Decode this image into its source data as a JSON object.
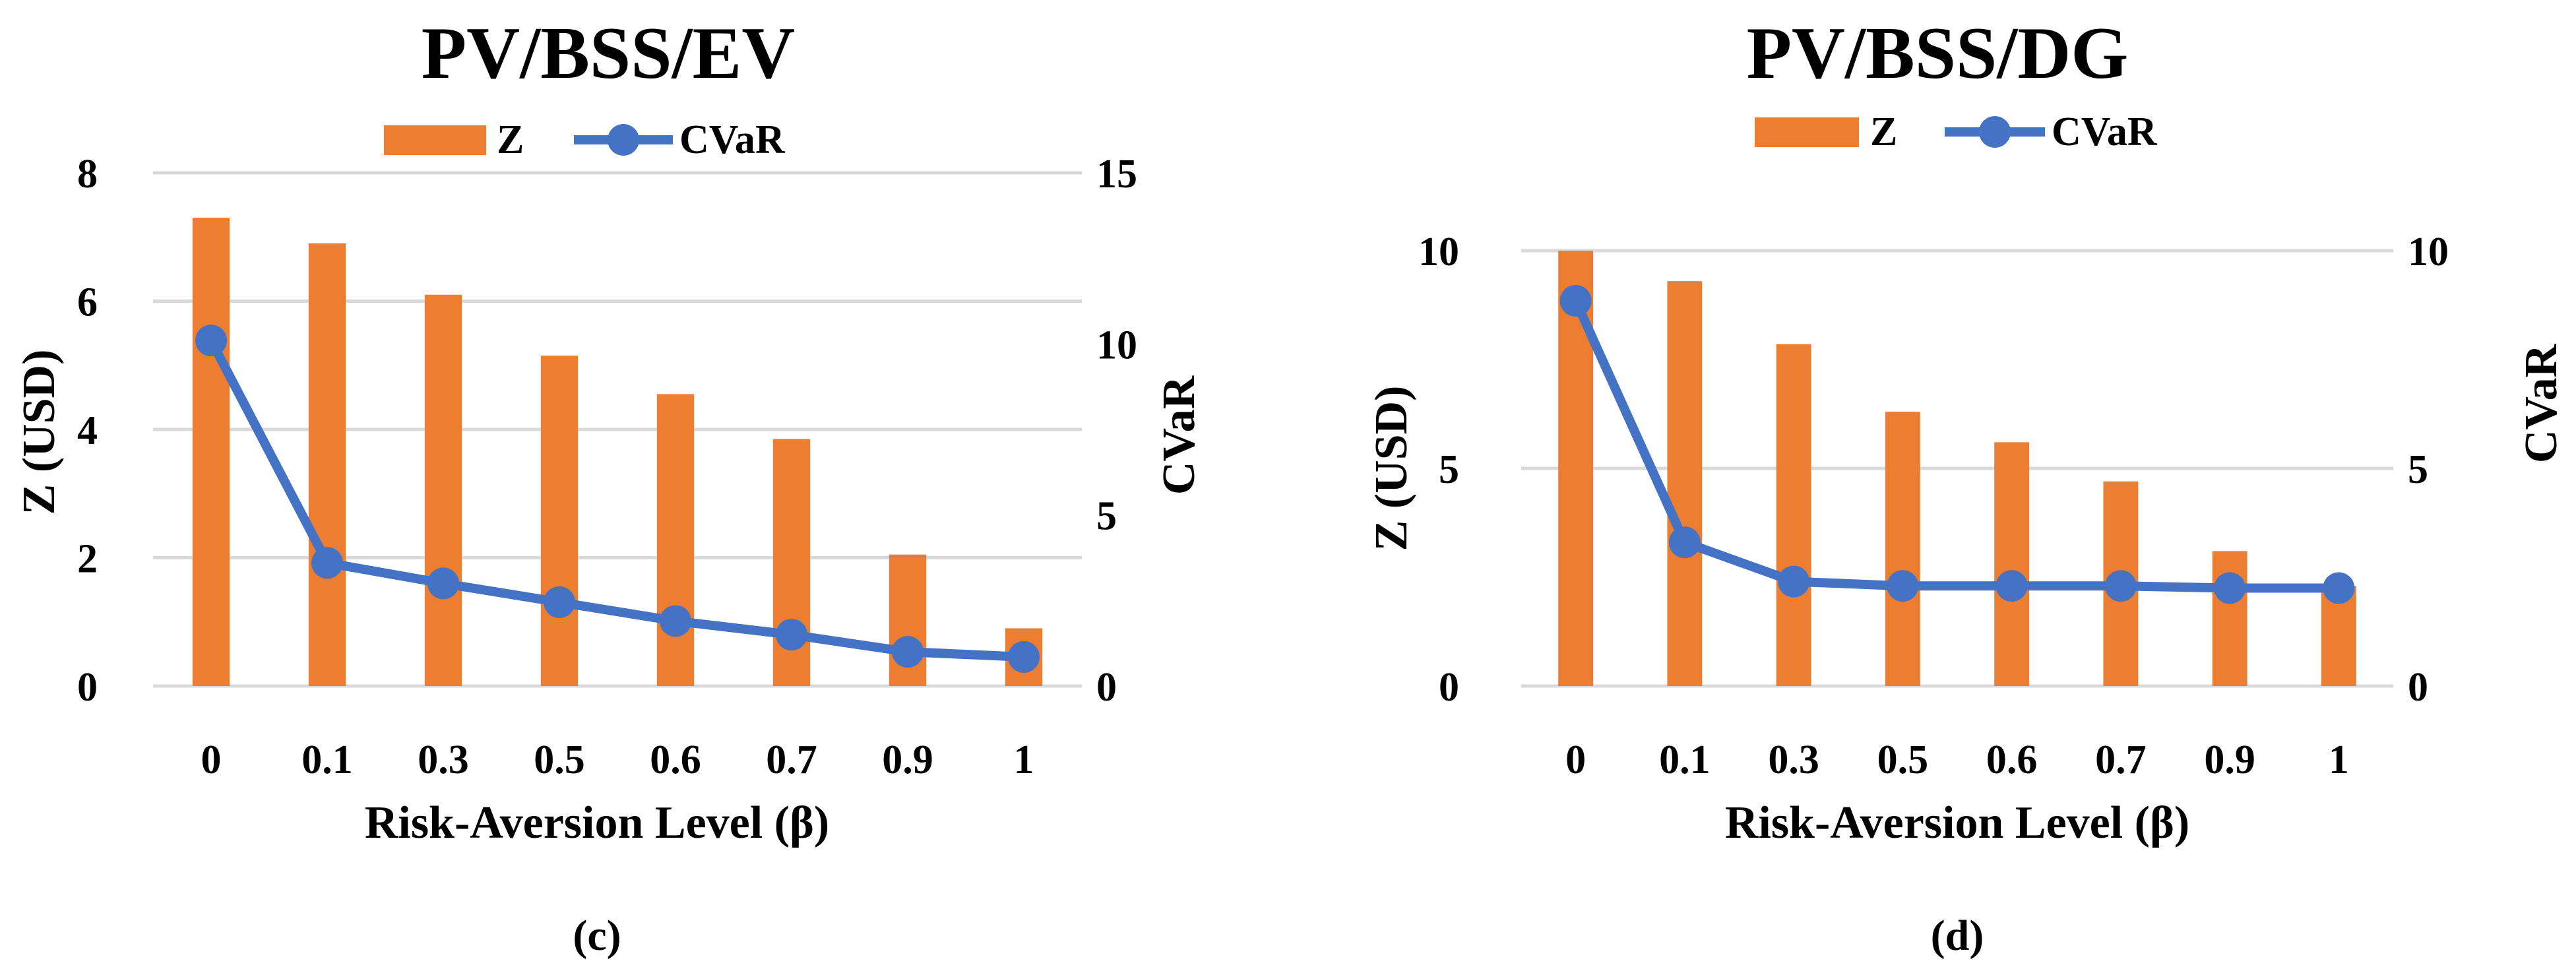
{
  "colors": {
    "z": "#ED7D31",
    "cvar": "#4472C4",
    "grid": "#D9D9D9"
  },
  "chart_data": [
    {
      "type": "bar+line",
      "title": "PV/BSS/EV",
      "caption_open": "(",
      "caption_letter": "c",
      "caption_close": ")",
      "legend": [
        "Z",
        "CVaR"
      ],
      "xlabel": "Risk-Aversion Level (β)",
      "ylabel": "Z (USD)",
      "y2label": "CVaR",
      "categories": [
        "0",
        "0.1",
        "0.3",
        "0.5",
        "0.6",
        "0.7",
        "0.9",
        "1"
      ],
      "ylim": [
        0,
        8
      ],
      "yticks": [
        0,
        2,
        4,
        6,
        8
      ],
      "y2lim": [
        0,
        15
      ],
      "y2ticks": [
        0,
        5,
        10,
        15
      ],
      "series": [
        {
          "name": "Z",
          "type": "bar",
          "axis": "left",
          "values": [
            7.3,
            6.9,
            6.1,
            5.15,
            4.55,
            3.85,
            2.05,
            0.9
          ]
        },
        {
          "name": "CVaR",
          "type": "line",
          "axis": "right",
          "values": [
            10.1,
            3.6,
            3.0,
            2.45,
            1.9,
            1.5,
            1.0,
            0.85
          ]
        }
      ]
    },
    {
      "type": "bar+line",
      "title": "PV/BSS/DG",
      "caption_open": "(",
      "caption_letter": "d",
      "caption_close": ")",
      "legend": [
        "Z",
        "CVaR"
      ],
      "xlabel": "Risk-Aversion Level (β)",
      "ylabel": "Z (USD)",
      "y2label": "CVaR",
      "categories": [
        "0",
        "0.1",
        "0.3",
        "0.5",
        "0.6",
        "0.7",
        "0.9",
        "1"
      ],
      "ylim": [
        0,
        10
      ],
      "yticks": [
        0,
        5,
        10
      ],
      "y2lim": [
        0,
        10
      ],
      "y2ticks": [
        0,
        5,
        10
      ],
      "series": [
        {
          "name": "Z",
          "type": "bar",
          "axis": "left",
          "values": [
            10.0,
            9.3,
            7.85,
            6.3,
            5.6,
            4.7,
            3.1,
            2.3
          ]
        },
        {
          "name": "CVaR",
          "type": "line",
          "axis": "right",
          "values": [
            8.85,
            3.3,
            2.4,
            2.3,
            2.3,
            2.3,
            2.25,
            2.25
          ]
        }
      ]
    }
  ]
}
